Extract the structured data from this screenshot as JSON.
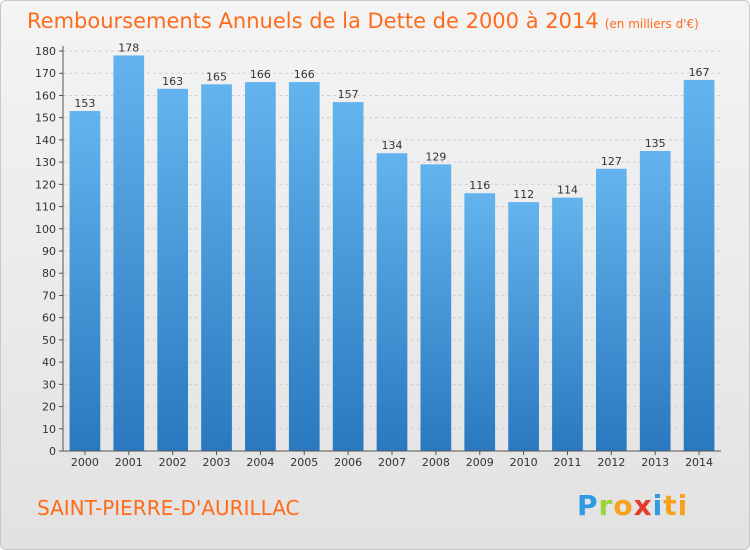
{
  "title": "Remboursements Annuels de la Dette de 2000 à 2014",
  "unit_note": "(en milliers d'€)",
  "place_name": "SAINT-PIERRE-D'AURILLAC",
  "brand": {
    "letters": [
      "P",
      "r",
      "o",
      "x",
      "i",
      "ti"
    ]
  },
  "colors": {
    "accent": "#ff6b1a",
    "bar_light": "#63b4ee",
    "bar_dark": "#2a78bf"
  },
  "chart_data": {
    "type": "bar",
    "title": "Remboursements Annuels de la Dette de 2000 à 2014",
    "xlabel": "",
    "ylabel": "",
    "categories": [
      "2000",
      "2001",
      "2002",
      "2003",
      "2004",
      "2005",
      "2006",
      "2007",
      "2008",
      "2009",
      "2010",
      "2011",
      "2012",
      "2013",
      "2014"
    ],
    "values": [
      153,
      178,
      163,
      165,
      166,
      166,
      157,
      134,
      129,
      116,
      112,
      114,
      127,
      135,
      167
    ],
    "ylim": [
      0,
      180
    ],
    "ytick_step": 10,
    "grid": true,
    "data_labels": true
  }
}
